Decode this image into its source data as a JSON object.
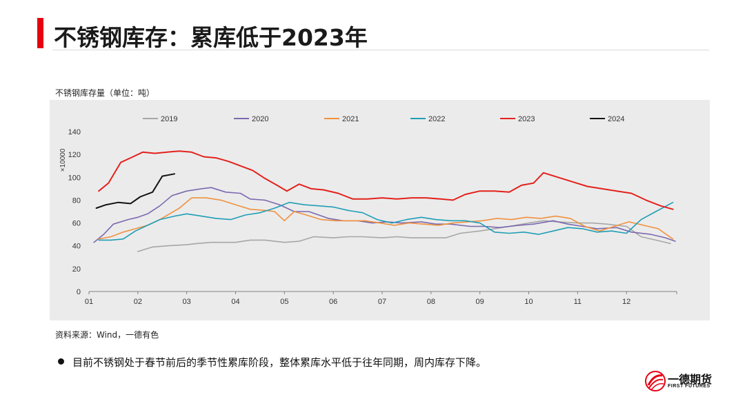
{
  "slide": {
    "title": "不锈钢库存：累库低于2023年",
    "source": "资料来源：Wind，一德有色",
    "bullet": "目前不锈钢处于春节前后的季节性累库阶段，整体累库水平低于往年同期，周内库存下降。"
  },
  "logo": {
    "name": "一德期货",
    "sub": "FIRST FUTURES"
  },
  "colors": {
    "accent": "#e60012",
    "plot_bg": "#ebebeb"
  },
  "chart_data": {
    "type": "line",
    "title": "不锈钢库存量（单位：吨）",
    "xlabel": "",
    "ylabel": "",
    "y_scale_label": "×10000",
    "ylim": [
      0,
      140
    ],
    "yticks": [
      "0",
      "20",
      "40",
      "60",
      "80",
      "100",
      "120",
      "140"
    ],
    "xlim": [
      1,
      13
    ],
    "xticks": [
      "01",
      "02",
      "03",
      "04",
      "05",
      "06",
      "07",
      "08",
      "09",
      "10",
      "11",
      "12"
    ],
    "legend_position": "top",
    "series": [
      {
        "name": "2019",
        "color": "#a6a6a6",
        "x": [
          2,
          2.3,
          2.6,
          3,
          3.2,
          3.5,
          3.8,
          4,
          4.3,
          4.6,
          5,
          5.3,
          5.6,
          6,
          6.3,
          6.6,
          7,
          7.3,
          7.6,
          8,
          8.3,
          8.6,
          9,
          9.3,
          9.6,
          10,
          10.3,
          10.6,
          11,
          11.3,
          11.6,
          12,
          12.3,
          12.6,
          12.9
        ],
        "y": [
          35,
          39,
          40,
          41,
          42,
          43,
          43,
          43,
          45,
          45,
          43,
          44,
          48,
          47,
          48,
          48,
          47,
          48,
          47,
          47,
          47,
          51,
          53,
          55,
          57,
          60,
          62,
          61,
          60,
          60,
          59,
          57,
          48,
          45,
          42
        ]
      },
      {
        "name": "2020",
        "color": "#7b68b0",
        "x": [
          1.1,
          1.3,
          1.5,
          1.8,
          2,
          2.2,
          2.45,
          2.7,
          3,
          3.3,
          3.5,
          3.8,
          4.1,
          4.3,
          4.6,
          4.9,
          5.2,
          5.5,
          5.9,
          6.2,
          6.5,
          6.8,
          7.1,
          7.4,
          7.8,
          8.1,
          8.4,
          8.8,
          9.1,
          9.4,
          9.8,
          10.1,
          10.5,
          10.8,
          11.1,
          11.4,
          11.8,
          12.1,
          12.5,
          12.8,
          13
        ],
        "y": [
          43,
          50,
          59,
          63,
          65,
          68,
          75,
          84,
          88,
          90,
          91,
          87,
          86,
          81,
          80,
          76,
          70,
          70,
          64,
          62,
          62,
          60,
          61,
          60,
          61,
          59,
          59,
          57,
          57,
          56,
          58,
          59,
          62,
          59,
          57,
          55,
          56,
          52,
          50,
          47,
          44
        ]
      },
      {
        "name": "2021",
        "color": "#f0913e",
        "x": [
          1.2,
          1.45,
          1.7,
          1.95,
          2.2,
          2.45,
          2.65,
          2.85,
          3.1,
          3.4,
          3.7,
          4,
          4.3,
          4.6,
          4.8,
          5,
          5.2,
          5.45,
          5.75,
          6.05,
          6.35,
          6.65,
          6.95,
          7.25,
          7.55,
          7.85,
          8.15,
          8.45,
          8.75,
          9.05,
          9.35,
          9.65,
          9.95,
          10.25,
          10.55,
          10.85,
          11.15,
          11.45,
          11.75,
          12.05,
          12.35,
          12.65,
          12.95
        ],
        "y": [
          46,
          48,
          52,
          55,
          58,
          63,
          68,
          73,
          82,
          82,
          80,
          76,
          72,
          71,
          70,
          62,
          70,
          67,
          63,
          62,
          62,
          62,
          60,
          58,
          60,
          59,
          58,
          60,
          61,
          62,
          64,
          63,
          65,
          64,
          66,
          64,
          57,
          53,
          57,
          61,
          58,
          55,
          46
        ]
      },
      {
        "name": "2022",
        "color": "#1e9db5",
        "x": [
          1.2,
          1.45,
          1.7,
          1.95,
          2.2,
          2.45,
          2.75,
          3,
          3.3,
          3.6,
          3.9,
          4.2,
          4.5,
          4.8,
          5.1,
          5.4,
          5.7,
          6,
          6.3,
          6.6,
          6.9,
          7.2,
          7.5,
          7.8,
          8.1,
          8.4,
          8.7,
          9,
          9.3,
          9.6,
          9.9,
          10.2,
          10.5,
          10.8,
          11.1,
          11.4,
          11.7,
          12,
          12.3,
          12.6,
          12.95
        ],
        "y": [
          45,
          45,
          46,
          53,
          58,
          63,
          66,
          68,
          66,
          64,
          63,
          67,
          69,
          73,
          78,
          76,
          75,
          74,
          71,
          69,
          63,
          60,
          63,
          65,
          63,
          62,
          62,
          60,
          52,
          51,
          52,
          50,
          53,
          56,
          55,
          52,
          53,
          51,
          63,
          70,
          78
        ]
      },
      {
        "name": "2023",
        "color": "#e3201b",
        "x": [
          1.2,
          1.4,
          1.65,
          1.9,
          2.1,
          2.35,
          2.6,
          2.85,
          3.1,
          3.35,
          3.6,
          3.85,
          4.1,
          4.35,
          4.6,
          4.85,
          5.05,
          5.3,
          5.55,
          5.8,
          6.1,
          6.4,
          6.7,
          7,
          7.3,
          7.6,
          7.9,
          8.2,
          8.45,
          8.7,
          9,
          9.3,
          9.6,
          9.85,
          10.1,
          10.3,
          10.6,
          10.9,
          11.2,
          11.5,
          11.8,
          12.1,
          12.4,
          12.7,
          12.95
        ],
        "y": [
          88,
          95,
          113,
          118,
          122,
          121,
          122,
          123,
          122,
          118,
          117,
          114,
          110,
          106,
          99,
          93,
          88,
          94,
          90,
          89,
          86,
          81,
          81,
          82,
          81,
          82,
          82,
          81,
          80,
          85,
          88,
          88,
          87,
          93,
          95,
          104,
          100,
          96,
          92,
          90,
          88,
          86,
          80,
          75,
          72
        ]
      },
      {
        "name": "2024",
        "color": "#111111",
        "x": [
          1.15,
          1.35,
          1.6,
          1.85,
          2.05,
          2.3,
          2.5,
          2.75
        ],
        "y": [
          73,
          76,
          78,
          77,
          83,
          87,
          101,
          103
        ]
      }
    ]
  }
}
